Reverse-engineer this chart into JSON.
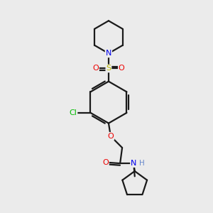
{
  "bg_color": "#ebebeb",
  "bond_color": "#1a1a1a",
  "atom_colors": {
    "N": "#0000ee",
    "O": "#ee0000",
    "S": "#bbbb00",
    "Cl": "#00bb00",
    "H": "#6688cc"
  },
  "lw": 1.6
}
